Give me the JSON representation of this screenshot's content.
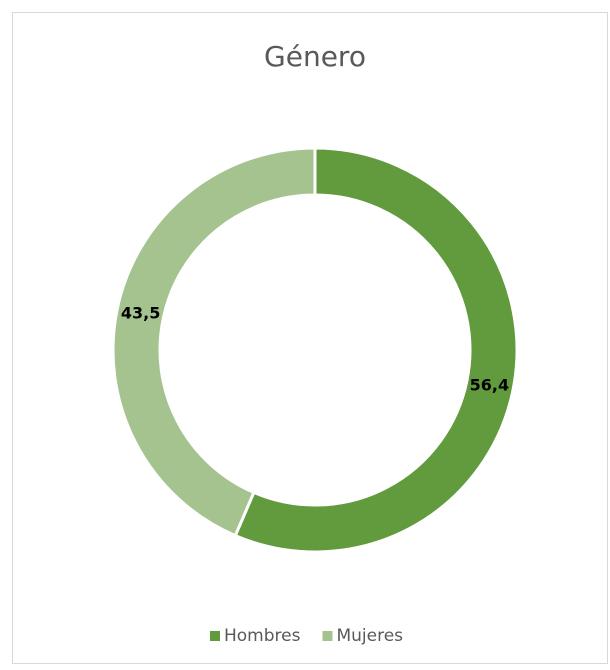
{
  "chart_data": {
    "type": "donut",
    "title": "Género",
    "categories": [
      "Hombres",
      "Mujeres"
    ],
    "values": [
      56.4,
      43.5
    ],
    "value_labels": [
      "56,4",
      "43,5"
    ],
    "colors": [
      "#629a3e",
      "#a4c38f"
    ],
    "legend": "bottom"
  }
}
